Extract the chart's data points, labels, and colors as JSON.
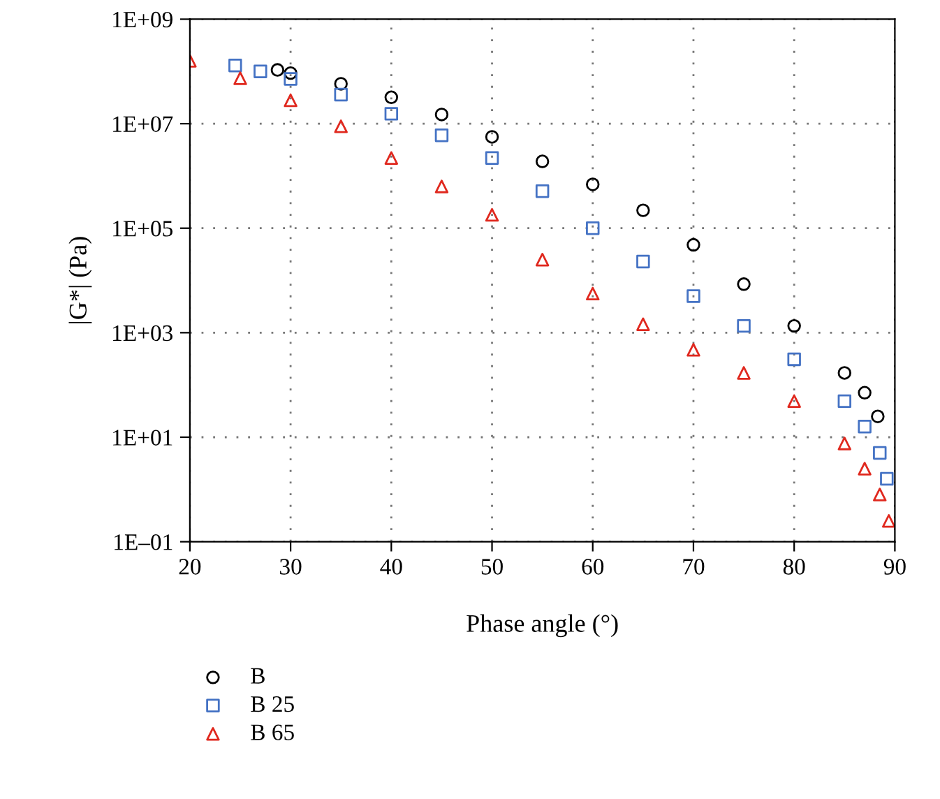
{
  "chart_data": {
    "type": "scatter",
    "xlabel": "Phase angle (°)",
    "ylabel": "|G*| (Pa)",
    "log": "y",
    "xlim": [
      20,
      90
    ],
    "xticks": [
      20,
      30,
      40,
      50,
      60,
      70,
      80,
      90
    ],
    "ylim": [
      0.1,
      1000000000
    ],
    "yticks": [
      {
        "value": 0.1,
        "label": "1E–01"
      },
      {
        "value": 10,
        "label": "1E+01"
      },
      {
        "value": 1000,
        "label": "1E+03"
      },
      {
        "value": 100000,
        "label": "1E+05"
      },
      {
        "value": 10000000,
        "label": "1E+07"
      },
      {
        "value": 1000000000,
        "label": "1E+09"
      }
    ],
    "grid": true,
    "legend": "bottom left",
    "series": [
      {
        "name": "B",
        "color": "#000000",
        "marker": "circle",
        "x": [
          28.7,
          30,
          35,
          40,
          45,
          50,
          55,
          60,
          65,
          70,
          75,
          80,
          85,
          87,
          88.3
        ],
        "values": [
          107000000.0,
          93000000.0,
          58000000.0,
          32000000.0,
          15000000.0,
          5600000.0,
          1900000.0,
          690000.0,
          220000.0,
          48000.0,
          8500.0,
          1350.0,
          170,
          71,
          25
        ]
      },
      {
        "name": "B 25",
        "color": "#4472c4",
        "marker": "square",
        "x": [
          24.5,
          27,
          30,
          35,
          40,
          45,
          50,
          55,
          60,
          65,
          70,
          75,
          80,
          85,
          87,
          88.5,
          89.2
        ],
        "values": [
          130000000.0,
          100000000.0,
          72000000.0,
          36000000.0,
          15500000.0,
          6000000.0,
          2200000.0,
          510000.0,
          100000.0,
          23000.0,
          5000.0,
          1350.0,
          310,
          49,
          16,
          5,
          1.6
        ]
      },
      {
        "name": "B 65",
        "color": "#e0281e",
        "marker": "triangle",
        "x": [
          20,
          25,
          30,
          35,
          40,
          45,
          50,
          55,
          60,
          65,
          70,
          75,
          80,
          85,
          87,
          88.5,
          89.4
        ],
        "values": [
          160000000.0,
          74000000.0,
          28000000.0,
          8900000.0,
          2200000.0,
          630000.0,
          180000.0,
          25000.0,
          5600.0,
          1450.0,
          470,
          170,
          49,
          7.6,
          2.5,
          0.8,
          0.25
        ]
      }
    ]
  }
}
